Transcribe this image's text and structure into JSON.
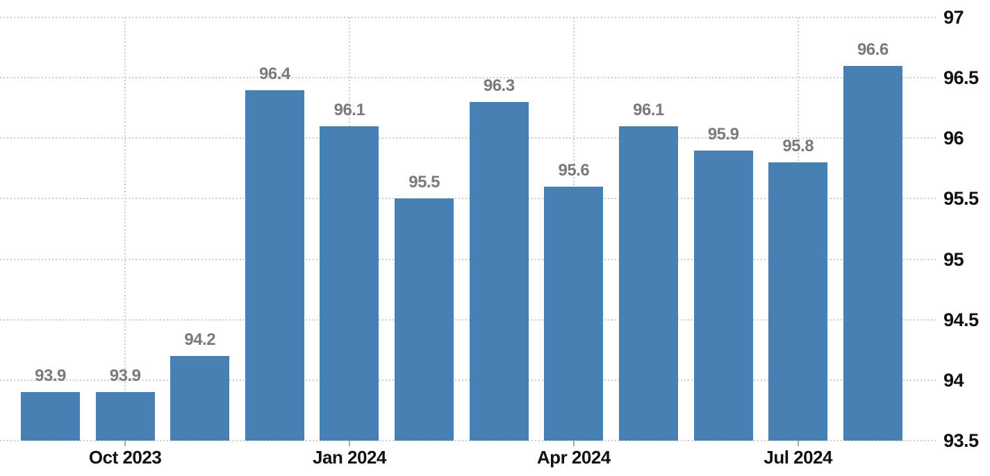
{
  "chart_data": {
    "type": "bar",
    "values": [
      93.9,
      93.9,
      94.2,
      96.4,
      96.1,
      95.5,
      96.3,
      95.6,
      96.1,
      95.9,
      95.8,
      96.6
    ],
    "bar_value_labels": [
      "93.9",
      "93.9",
      "94.2",
      "96.4",
      "96.1",
      "95.5",
      "96.3",
      "95.6",
      "96.1",
      "95.9",
      "95.8",
      "96.6"
    ],
    "x_ticks": [
      {
        "label": "Oct 2023",
        "bar_index": 1
      },
      {
        "label": "Jan 2024",
        "bar_index": 4
      },
      {
        "label": "Apr 2024",
        "bar_index": 7
      },
      {
        "label": "Jul 2024",
        "bar_index": 10
      }
    ],
    "y_ticks": [
      "93.5",
      "94",
      "94.5",
      "95",
      "95.5",
      "96",
      "96.5",
      "97"
    ],
    "ylim": [
      93.5,
      97
    ],
    "y_axis_side": "right",
    "grid": "dotted, horizontal at every y tick, vertical at every x tick",
    "legend_position": "none",
    "colors": {
      "bar": "#4781b4",
      "value_label": "#7a7a7a",
      "axis_label": "#111111",
      "gridline": "#cccccc",
      "tick_mark": "#aaaaaa",
      "background": "#ffffff"
    }
  }
}
